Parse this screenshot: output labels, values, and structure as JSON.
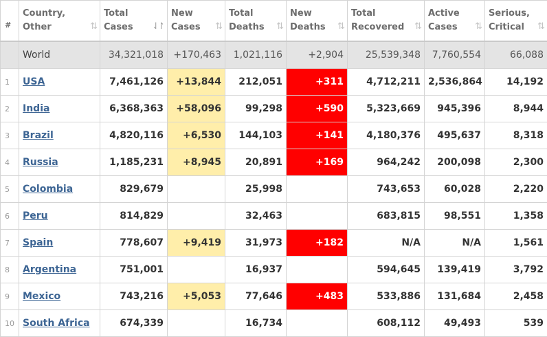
{
  "headers": {
    "idx": "#",
    "country": [
      "Country,",
      "Other"
    ],
    "total_cases": [
      "Total",
      "Cases"
    ],
    "new_cases": [
      "New",
      "Cases"
    ],
    "total_deaths": [
      "Total",
      "Deaths"
    ],
    "new_deaths": [
      "New",
      "Deaths"
    ],
    "total_recovered": [
      "Total",
      "Recovered"
    ],
    "active_cases": [
      "Active",
      "Cases"
    ],
    "serious_critical": [
      "Serious,",
      "Critical"
    ],
    "sort_icon": "⇅",
    "sort_active_icon": "⇃↾"
  },
  "world": {
    "country": "World",
    "total_cases": "34,321,018",
    "new_cases": "+170,463",
    "total_deaths": "1,021,116",
    "new_deaths": "+2,904",
    "total_recovered": "25,539,348",
    "active_cases": "7,760,554",
    "serious_critical": "66,088"
  },
  "rows": [
    {
      "idx": "1",
      "country": "USA",
      "total_cases": "7,461,126",
      "new_cases": "+13,844",
      "total_deaths": "212,051",
      "new_deaths": "+311",
      "total_recovered": "4,712,211",
      "active_cases": "2,536,864",
      "serious_critical": "14,192"
    },
    {
      "idx": "2",
      "country": "India",
      "total_cases": "6,368,363",
      "new_cases": "+58,096",
      "total_deaths": "99,298",
      "new_deaths": "+590",
      "total_recovered": "5,323,669",
      "active_cases": "945,396",
      "serious_critical": "8,944"
    },
    {
      "idx": "3",
      "country": "Brazil",
      "total_cases": "4,820,116",
      "new_cases": "+6,530",
      "total_deaths": "144,103",
      "new_deaths": "+141",
      "total_recovered": "4,180,376",
      "active_cases": "495,637",
      "serious_critical": "8,318"
    },
    {
      "idx": "4",
      "country": "Russia",
      "total_cases": "1,185,231",
      "new_cases": "+8,945",
      "total_deaths": "20,891",
      "new_deaths": "+169",
      "total_recovered": "964,242",
      "active_cases": "200,098",
      "serious_critical": "2,300"
    },
    {
      "idx": "5",
      "country": "Colombia",
      "total_cases": "829,679",
      "new_cases": "",
      "total_deaths": "25,998",
      "new_deaths": "",
      "total_recovered": "743,653",
      "active_cases": "60,028",
      "serious_critical": "2,220"
    },
    {
      "idx": "6",
      "country": "Peru",
      "total_cases": "814,829",
      "new_cases": "",
      "total_deaths": "32,463",
      "new_deaths": "",
      "total_recovered": "683,815",
      "active_cases": "98,551",
      "serious_critical": "1,358"
    },
    {
      "idx": "7",
      "country": "Spain",
      "total_cases": "778,607",
      "new_cases": "+9,419",
      "total_deaths": "31,973",
      "new_deaths": "+182",
      "total_recovered": "N/A",
      "active_cases": "N/A",
      "serious_critical": "1,561"
    },
    {
      "idx": "8",
      "country": "Argentina",
      "total_cases": "751,001",
      "new_cases": "",
      "total_deaths": "16,937",
      "new_deaths": "",
      "total_recovered": "594,645",
      "active_cases": "139,419",
      "serious_critical": "3,792"
    },
    {
      "idx": "9",
      "country": "Mexico",
      "total_cases": "743,216",
      "new_cases": "+5,053",
      "total_deaths": "77,646",
      "new_deaths": "+483",
      "total_recovered": "533,886",
      "active_cases": "131,684",
      "serious_critical": "2,458"
    },
    {
      "idx": "10",
      "country": "South Africa",
      "total_cases": "674,339",
      "new_cases": "",
      "total_deaths": "16,734",
      "new_deaths": "",
      "total_recovered": "608,112",
      "active_cases": "49,493",
      "serious_critical": "539"
    }
  ],
  "colors": {
    "new_cases_bg": "#ffeeaa",
    "new_deaths_bg": "#ff0000",
    "world_row_bg": "#e4e4e4",
    "country_link": "#3d6594"
  }
}
